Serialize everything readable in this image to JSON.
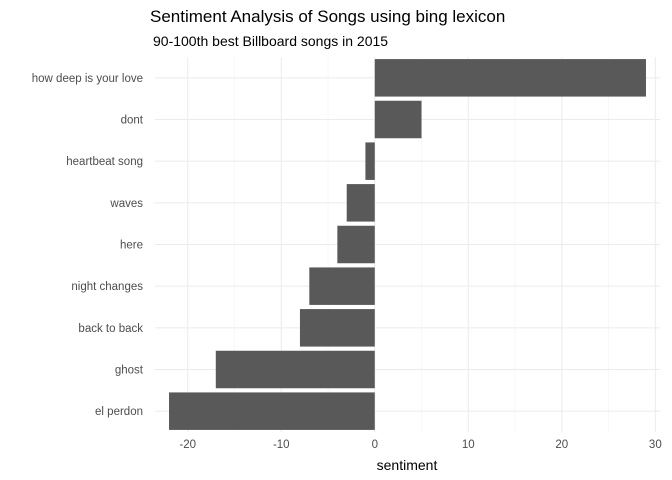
{
  "chart_data": {
    "type": "bar",
    "orientation": "horizontal",
    "title": "Sentiment Analysis of Songs using bing lexicon",
    "subtitle": "90-100th best Billboard songs in 2015",
    "xlabel": "sentiment",
    "ylabel": "",
    "categories": [
      "how deep is your love",
      "dont",
      "heartbeat song",
      "waves",
      "here",
      "night changes",
      "back to back",
      "ghost",
      "el perdon"
    ],
    "values": [
      29,
      5,
      -1,
      -3,
      -4,
      -7,
      -8,
      -17,
      -22
    ],
    "xlim": [
      -23.5,
      30.5
    ],
    "xticks": [
      -20,
      -10,
      0,
      10,
      20,
      30
    ],
    "bar_color": "#595959",
    "grid": true,
    "legend": "none"
  }
}
